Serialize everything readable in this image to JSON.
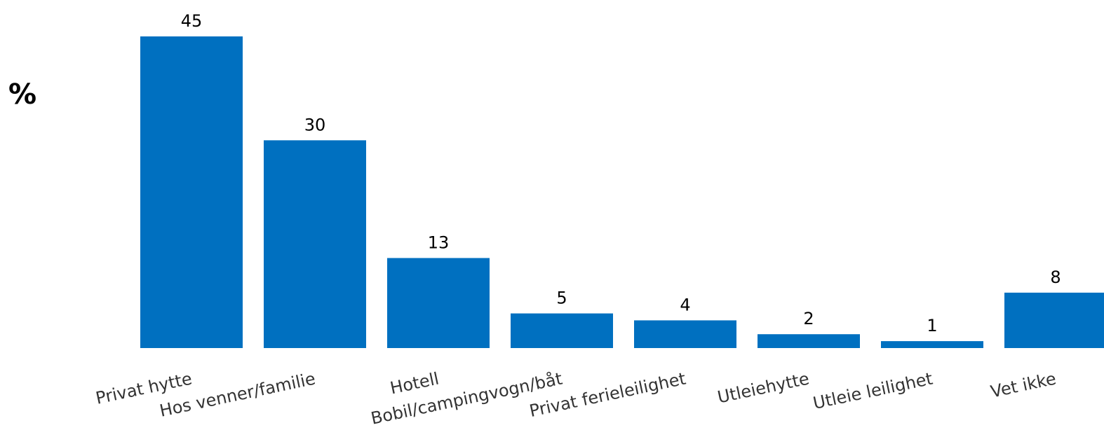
{
  "chart_data": {
    "type": "bar",
    "y_label": "%",
    "categories": [
      "Privat hytte",
      "Hos venner/familie",
      "Hotell",
      "Bobil/campingvogn/båt",
      "Privat ferieleilighet",
      "Utleiehytte",
      "Utleie leilighet",
      "Vet ikke"
    ],
    "values": [
      45,
      30,
      13,
      5,
      4,
      2,
      1,
      8
    ],
    "color": "#0070c0"
  }
}
